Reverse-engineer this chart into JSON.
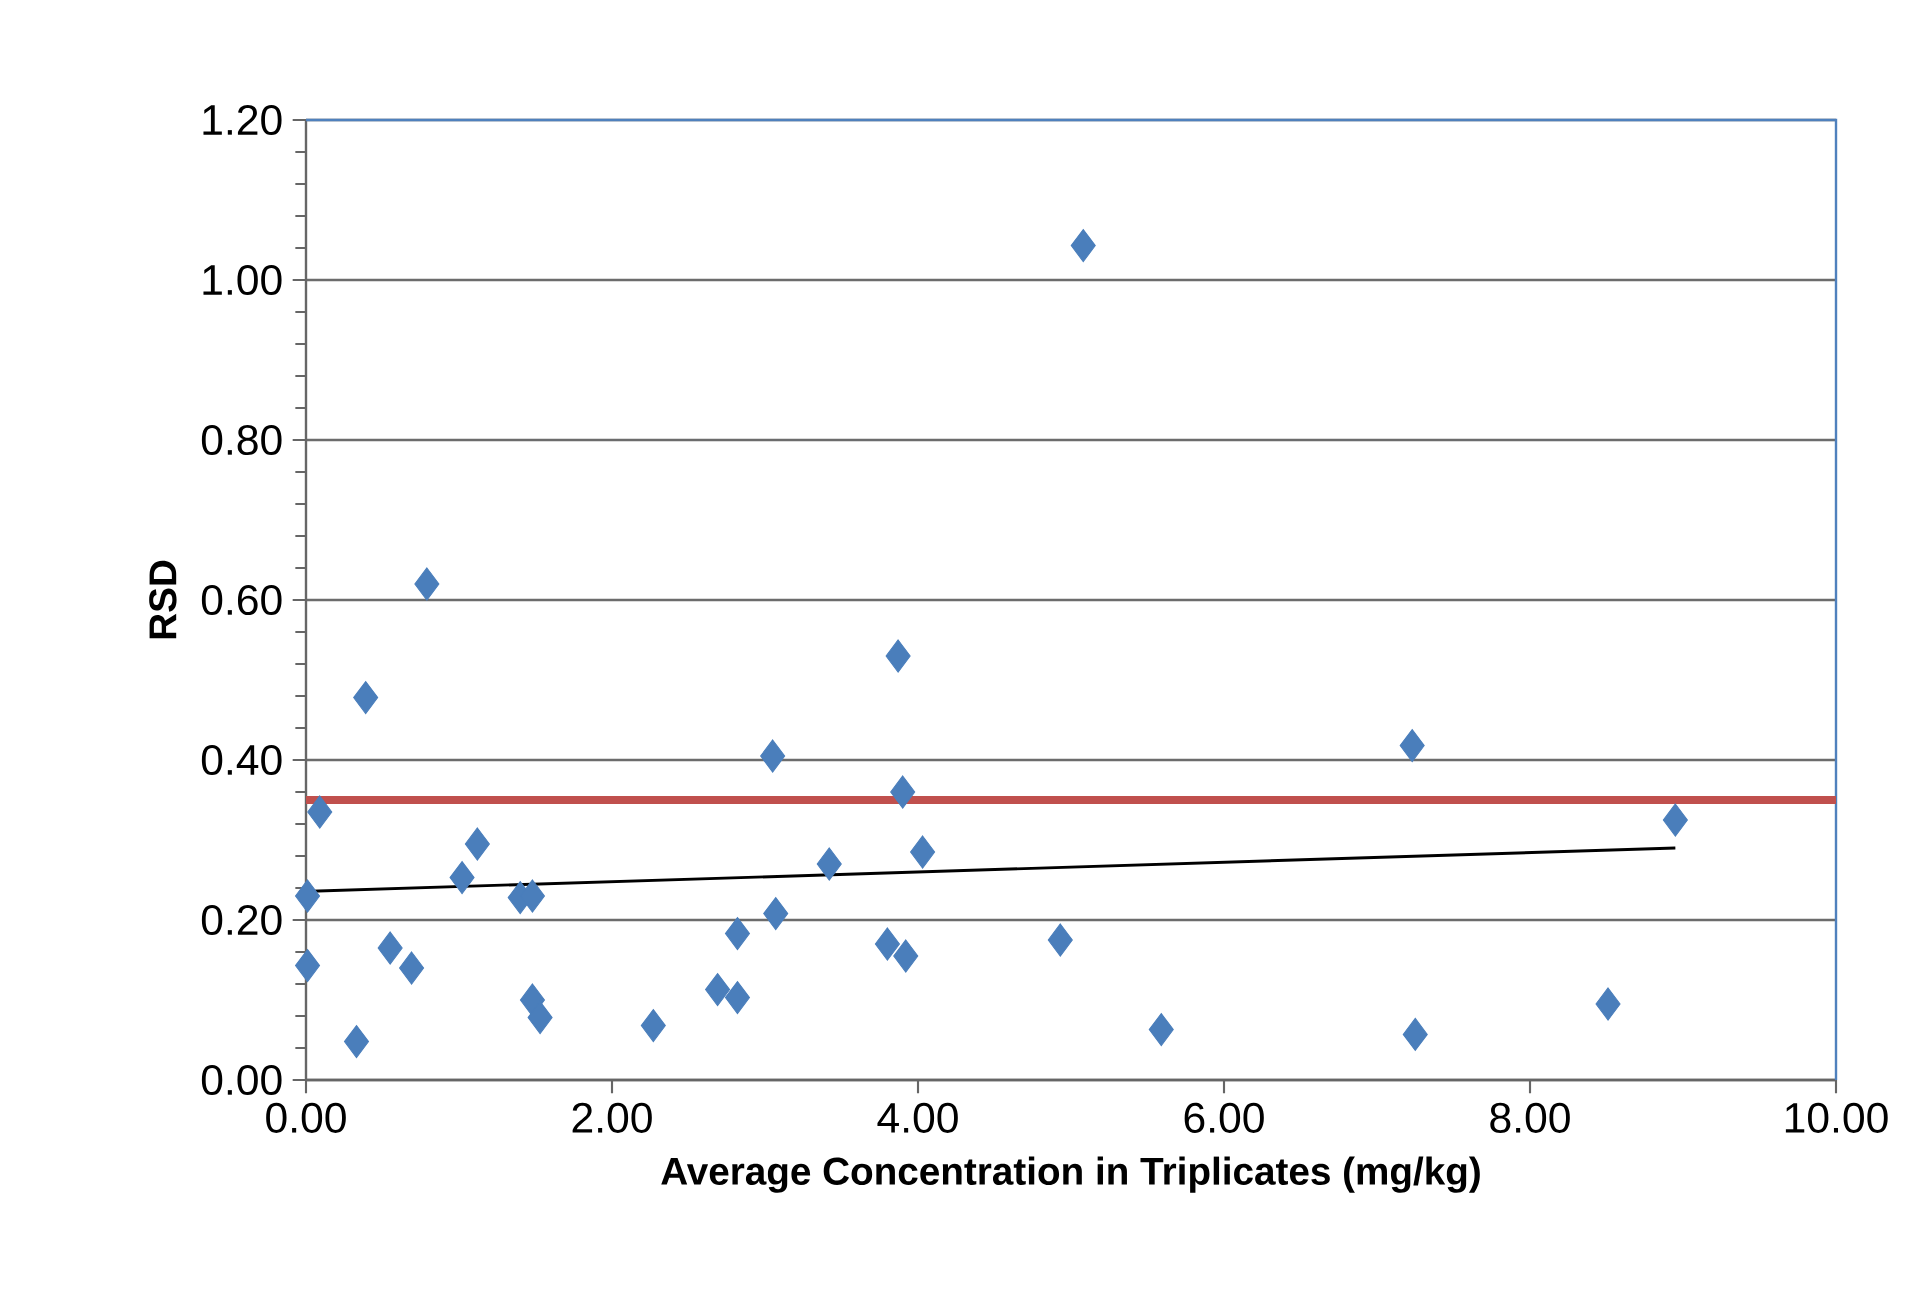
{
  "chart_data": {
    "type": "scatter",
    "xlabel": "Average Concentration in Triplicates (mg/kg)",
    "ylabel": "RSD",
    "xlim": [
      0,
      10
    ],
    "ylim": [
      0,
      1.2
    ],
    "xticks": [
      {
        "value": 0,
        "label": "0.00"
      },
      {
        "value": 2,
        "label": "2.00"
      },
      {
        "value": 4,
        "label": "4.00"
      },
      {
        "value": 6,
        "label": "6.00"
      },
      {
        "value": 8,
        "label": "8.00"
      },
      {
        "value": 10,
        "label": "10.00"
      }
    ],
    "yticks": [
      {
        "value": 0,
        "label": "0.00"
      },
      {
        "value": 0.2,
        "label": "0.20"
      },
      {
        "value": 0.4,
        "label": "0.40"
      },
      {
        "value": 0.6,
        "label": "0.60"
      },
      {
        "value": 0.8,
        "label": "0.80"
      },
      {
        "value": 1.0,
        "label": "1.00"
      },
      {
        "value": 1.2,
        "label": "1.20"
      }
    ],
    "grid": "y",
    "marker": "diamond",
    "series": [
      {
        "color": "#4a7ebb",
        "x": [
          0.01,
          0.01,
          0.09,
          0.33,
          0.39,
          0.55,
          0.69,
          0.79,
          1.02,
          1.12,
          1.4,
          1.48,
          1.48,
          1.53,
          2.27,
          2.69,
          2.82,
          2.82,
          3.05,
          3.07,
          3.42,
          3.8,
          3.87,
          3.9,
          3.92,
          4.03,
          4.93,
          5.08,
          5.59,
          7.23,
          7.25,
          8.51,
          8.95
        ],
        "values": [
          0.23,
          0.143,
          0.335,
          0.048,
          0.478,
          0.165,
          0.14,
          0.62,
          0.253,
          0.295,
          0.228,
          0.23,
          0.1,
          0.078,
          0.068,
          0.113,
          0.103,
          0.183,
          0.405,
          0.208,
          0.27,
          0.17,
          0.53,
          0.36,
          0.155,
          0.285,
          0.175,
          1.043,
          0.063,
          0.418,
          0.057,
          0.095,
          0.325
        ]
      },
      {
        "type": "line",
        "color": "#000000",
        "marker": "none",
        "x": [
          0.03,
          8.95
        ],
        "values": [
          0.236,
          0.29
        ]
      }
    ],
    "ref_lines": [
      {
        "axis": "y",
        "value": 0.35,
        "color": "#c0504d"
      }
    ]
  }
}
